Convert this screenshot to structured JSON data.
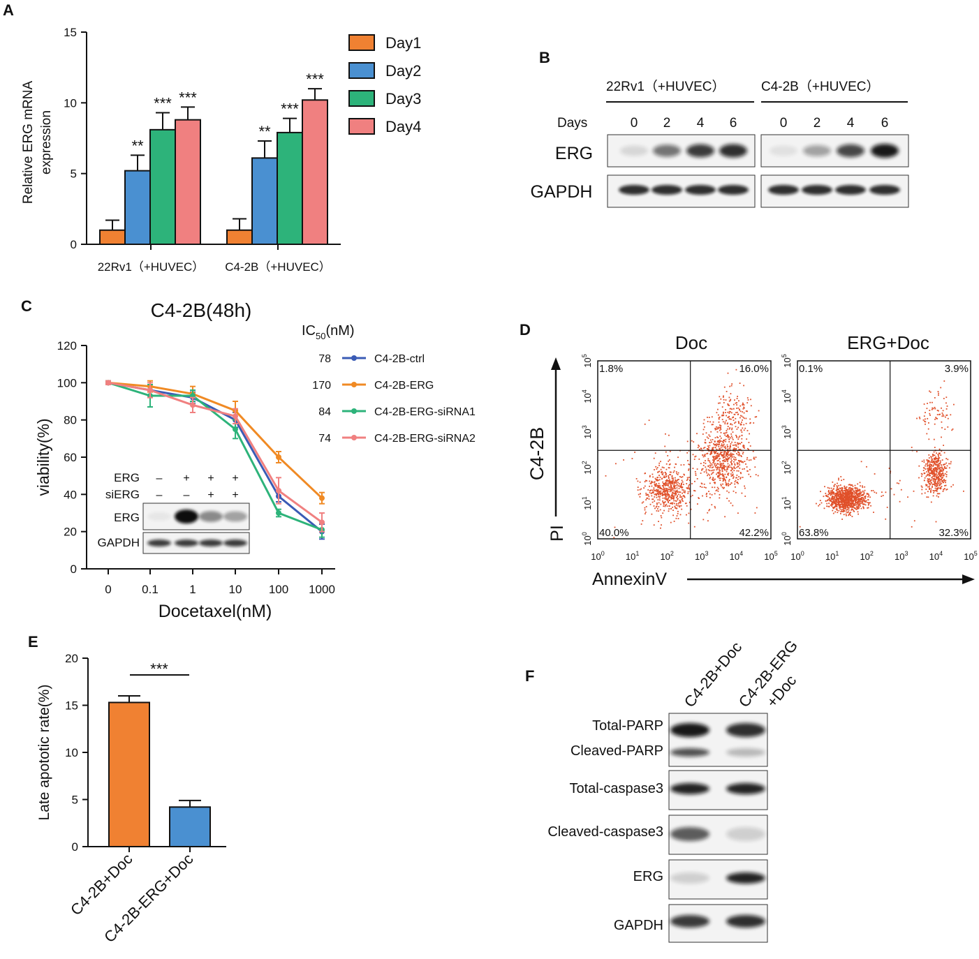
{
  "panels": {
    "A": {
      "label": "A",
      "ylabel_line1": "Relative ERG mRNA",
      "ylabel_line2": "expression",
      "yticks": [
        "0",
        "5",
        "10",
        "15"
      ],
      "groups": [
        "22Rv1（+HUVEC）",
        "C4-2B（+HUVEC）"
      ],
      "legend": [
        "Day1",
        "Day2",
        "Day3",
        "Day4"
      ],
      "significance": [
        [
          "",
          "**",
          "***",
          "***"
        ],
        [
          "",
          "**",
          "***",
          "***"
        ]
      ]
    },
    "B": {
      "label": "B",
      "headers": [
        "22Rv1（+HUVEC）",
        "C4-2B（+HUVEC）"
      ],
      "days_label": "Days",
      "days": [
        "0",
        "2",
        "4",
        "6",
        "0",
        "2",
        "4",
        "6"
      ],
      "rows": [
        "ERG",
        "GAPDH"
      ]
    },
    "C": {
      "label": "C",
      "title": "C4-2B(48h)",
      "ic50_header_main": "IC",
      "ic50_header_sub": "50",
      "ic50_header_unit": "(nM)",
      "ylabel": "viability(%)",
      "xlabel": "Docetaxel(nM)",
      "yticks": [
        "0",
        "20",
        "40",
        "60",
        "80",
        "100",
        "120"
      ],
      "xticks": [
        "0",
        "0.1",
        "1",
        "10",
        "100",
        "1000"
      ],
      "inset": {
        "erg_label": "ERG",
        "sierg_label": "siERG",
        "erg_signs": [
          "–",
          "+",
          "+",
          "+"
        ],
        "sierg_signs": [
          "–",
          "–",
          "+",
          "+"
        ],
        "blot_rows": [
          "ERG",
          "GAPDH"
        ]
      }
    },
    "D": {
      "label": "D",
      "titles": [
        "Doc",
        "ERG+Doc"
      ],
      "ylabel_cell": "C4-2B",
      "ylabel_axis": "PI",
      "xlabel": "AnnexinV",
      "axis_exponents": [
        "0",
        "1",
        "2",
        "3",
        "4",
        "5"
      ],
      "axis_base": "10",
      "quadrants": [
        {
          "ul": "1.8%",
          "ur": "16.0%",
          "ll": "40.0%",
          "lr": "42.2%"
        },
        {
          "ul": "0.1%",
          "ur": "3.9%",
          "ll": "63.8%",
          "lr": "32.3%"
        }
      ]
    },
    "E": {
      "label": "E",
      "ylabel": "Late apototic rate(%)",
      "yticks": [
        "0",
        "5",
        "10",
        "15",
        "20"
      ],
      "significance": "***"
    },
    "F": {
      "label": "F",
      "lanes": [
        "C4-2B+Doc",
        "C4-2B-ERG",
        "+Doc"
      ],
      "rows": [
        "Total-PARP",
        "Cleaved-PARP",
        "Total-caspase3",
        "Cleaved-caspase3",
        "ERG",
        "GAPDH"
      ]
    }
  },
  "chart_data": [
    {
      "type": "bar",
      "panel": "A",
      "categories": [
        "22Rv1（+HUVEC）",
        "C4-2B（+HUVEC）"
      ],
      "series": [
        {
          "name": "Day1",
          "values": [
            1.0,
            1.0
          ],
          "errors": [
            0.7,
            0.8
          ],
          "color": "#f08132"
        },
        {
          "name": "Day2",
          "values": [
            5.2,
            6.1
          ],
          "errors": [
            1.1,
            1.2
          ],
          "color": "#4a90d1"
        },
        {
          "name": "Day3",
          "values": [
            8.1,
            7.9
          ],
          "errors": [
            1.2,
            1.0
          ],
          "color": "#2db37a"
        },
        {
          "name": "Day4",
          "values": [
            8.8,
            10.2
          ],
          "errors": [
            0.9,
            0.8
          ],
          "color": "#f08080"
        }
      ],
      "ylabel": "Relative ERG mRNA expression",
      "ylim": [
        0,
        15
      ]
    },
    {
      "type": "line",
      "panel": "C",
      "title": "C4-2B(48h)",
      "x": [
        "0",
        "0.1",
        "1",
        "10",
        "100",
        "1000"
      ],
      "series": [
        {
          "name": "C4-2B-ctrl",
          "ic50": "78",
          "color": "#3a5bb5",
          "values": [
            100,
            96,
            92,
            80,
            39,
            20
          ],
          "errors": [
            1,
            3,
            3,
            4,
            3,
            4
          ]
        },
        {
          "name": "C4-2B-ERG",
          "ic50": "170",
          "color": "#f08a24",
          "values": [
            100,
            98,
            94,
            85,
            60,
            38
          ],
          "errors": [
            1,
            3,
            4,
            5,
            3,
            3
          ]
        },
        {
          "name": "C4-2B-ERG-siRNA1",
          "ic50": "84",
          "color": "#2db37a",
          "values": [
            100,
            93,
            93,
            75,
            30,
            21
          ],
          "errors": [
            1,
            6,
            3,
            5,
            2,
            4
          ]
        },
        {
          "name": "C4-2B-ERG-siRNA2",
          "ic50": "74",
          "color": "#f08080",
          "values": [
            100,
            96,
            88,
            82,
            42,
            25
          ],
          "errors": [
            1,
            4,
            4,
            4,
            7,
            5
          ]
        }
      ],
      "xlabel": "Docetaxel(nM)",
      "ylabel": "viability(%)",
      "ylim": [
        0,
        120
      ]
    },
    {
      "type": "bar",
      "panel": "E",
      "categories": [
        "C4-2B+Doc",
        "C4-2B-ERG+Doc"
      ],
      "values": [
        15.3,
        4.2
      ],
      "errors": [
        0.7,
        0.7
      ],
      "colors": [
        "#f08132",
        "#4a90d1"
      ],
      "ylabel": "Late apototic rate(%)",
      "ylim": [
        0,
        20
      ]
    }
  ]
}
